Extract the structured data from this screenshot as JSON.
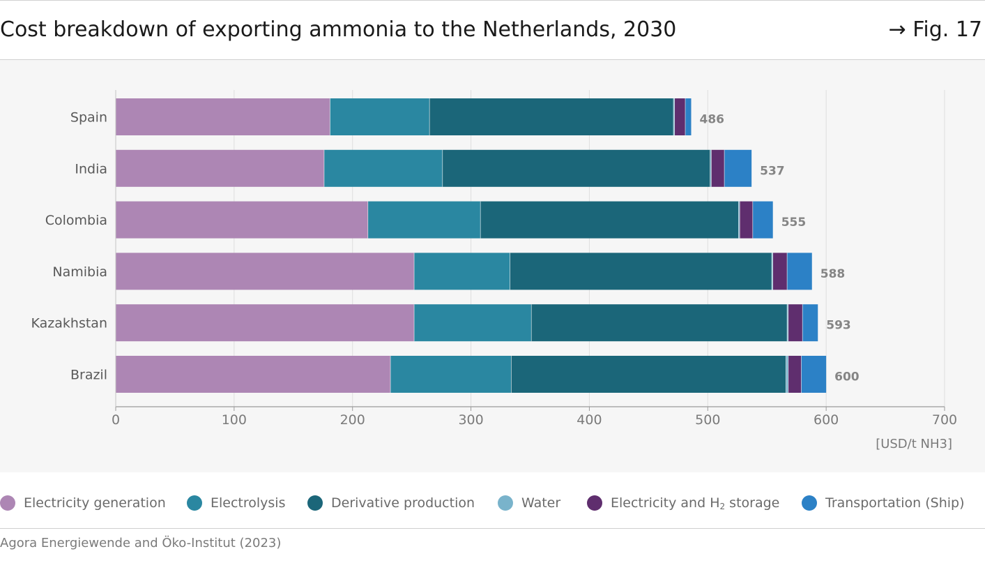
{
  "header": {
    "title": "Cost breakdown of exporting ammonia to the Netherlands, 2030",
    "fig_ref": "→ Fig. 17"
  },
  "footer": {
    "source": "Agora Energiewende and Öko-Institut (2023)"
  },
  "legend": {
    "items": [
      {
        "label": "Electricity generation",
        "color": "#ad86b4"
      },
      {
        "label": "Electrolysis",
        "color": "#2a87a1"
      },
      {
        "label": "Derivative production",
        "color": "#1b6679"
      },
      {
        "label": "Water",
        "color": "#79b3cb"
      },
      {
        "label_main": "Electricity and H",
        "label_sub": "2",
        "label_tail": " storage",
        "color": "#5f2e6e"
      },
      {
        "label": "Transportation (Ship)",
        "color": "#2c81c6"
      }
    ]
  },
  "chart_data": {
    "type": "bar",
    "orientation": "horizontal",
    "stacked": true,
    "categories": [
      "Spain",
      "India",
      "Colombia",
      "Namibia",
      "Kazakhstan",
      "Brazil"
    ],
    "series": [
      {
        "name": "Electricity generation",
        "values": [
          181,
          176,
          213,
          252,
          252,
          232
        ]
      },
      {
        "name": "Electrolysis",
        "values": [
          84,
          100,
          95,
          81,
          99,
          102
        ]
      },
      {
        "name": "Derivative production",
        "values": [
          206,
          226,
          218,
          221,
          216,
          232
        ]
      },
      {
        "name": "Water",
        "values": [
          1,
          1,
          1,
          1,
          1,
          2
        ]
      },
      {
        "name": "Electricity and H2 storage",
        "values": [
          9,
          11,
          11,
          12,
          12,
          11
        ]
      },
      {
        "name": "Transportation (Ship)",
        "values": [
          5,
          23,
          17,
          21,
          13,
          21
        ]
      }
    ],
    "totals": [
      486,
      537,
      555,
      588,
      593,
      600
    ],
    "xlim": [
      0,
      700
    ],
    "xticks": [
      0,
      100,
      200,
      300,
      400,
      500,
      600,
      700
    ],
    "xlabel": "[USD/t NH3]",
    "grid": true,
    "legend_position": "bottom"
  }
}
